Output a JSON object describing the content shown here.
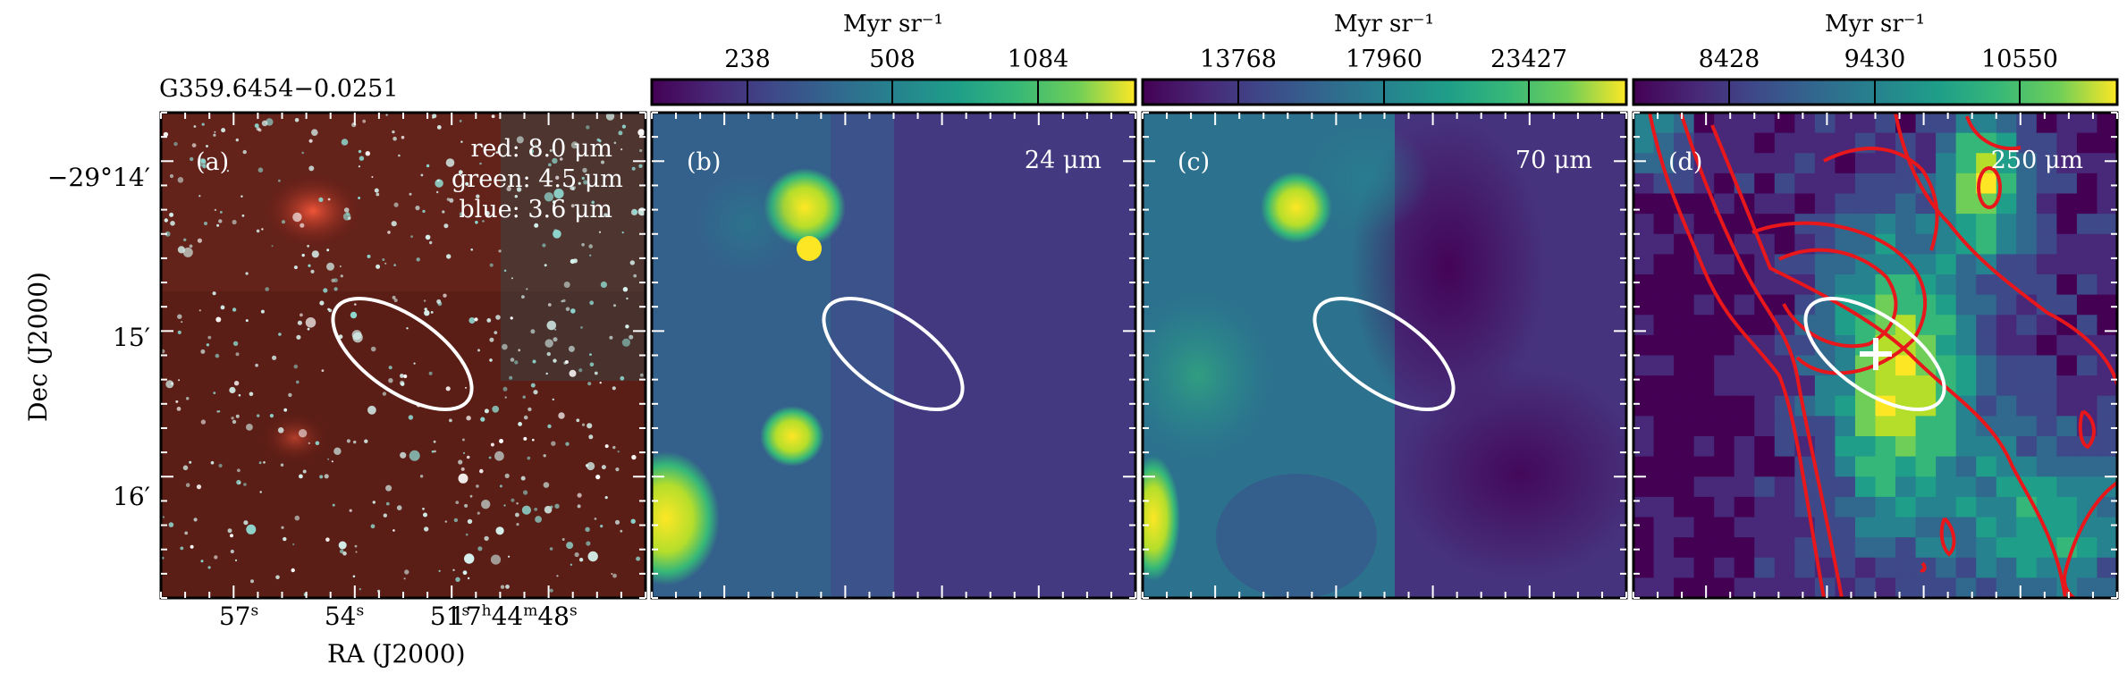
{
  "figure": {
    "source_name": "G359.6454−0.0251",
    "panels": [
      {
        "id": "a",
        "label": "(a)",
        "rgb": [
          "red: 8.0 μm",
          "green: 4.5 μm",
          "blue: 3.6 μm"
        ]
      },
      {
        "id": "b",
        "label": "(b)",
        "band": "24 μm",
        "cbar": {
          "unit": "Myr sr⁻¹",
          "ticks": [
            "238",
            "508",
            "1084"
          ]
        }
      },
      {
        "id": "c",
        "label": "(c)",
        "band": "70 μm",
        "cbar": {
          "unit": "Myr sr⁻¹",
          "ticks": [
            "13768",
            "17960",
            "23427"
          ]
        }
      },
      {
        "id": "d",
        "label": "(d)",
        "band": "250 μm",
        "cbar": {
          "unit": "Myr sr⁻¹",
          "ticks": [
            "8428",
            "9430",
            "10550"
          ]
        }
      }
    ],
    "axes": {
      "ylabel": "Dec (J2000)",
      "xlabel": "RA (J2000)",
      "dec_ticks": [
        "−29°14′",
        "15′",
        "16′"
      ],
      "ra_ticks": [
        {
          "main": "57",
          "sup": "s"
        },
        {
          "main": "54",
          "sup": "s"
        },
        {
          "main": "51",
          "sup": "s"
        },
        {
          "main": "17",
          "sup": "h",
          "main2": "44",
          "sup2": "m",
          "main3": "48",
          "sup3": "s"
        }
      ]
    },
    "colors": {
      "ellipse": "#ffffff",
      "contours": "#e8171c",
      "marker": "#ffffff"
    }
  }
}
